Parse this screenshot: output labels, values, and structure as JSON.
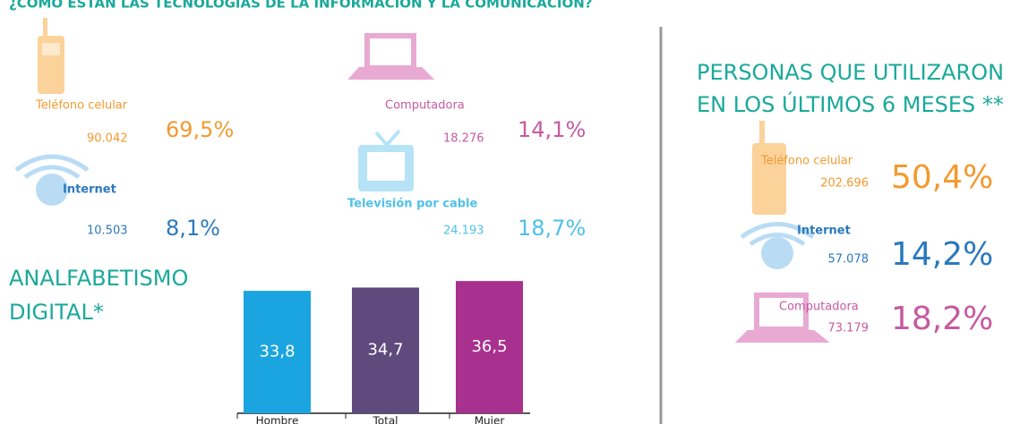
{
  "header": {
    "title": "¿CÓMO ESTÁN LAS TECNOLOGÍAS DE LA INFORMACIÓN Y LA COMUNICACIÓN?"
  },
  "hogares": [
    {
      "label": "Teléfono celular",
      "count": "90.042",
      "percent": "69,5%"
    },
    {
      "label": "Computadora",
      "count": "18.276",
      "percent": "14,1%"
    },
    {
      "label": "Internet",
      "count": "10.503",
      "percent": "8,1%"
    },
    {
      "label": "Televisión por cable",
      "count": "24.193",
      "percent": "18,7%"
    }
  ],
  "chart_data": {
    "type": "bar",
    "title": "ANALFABETISMO DIGITAL*",
    "categories": [
      "Hombre",
      "Total",
      "Mujer"
    ],
    "values": [
      33.8,
      34.7,
      36.5
    ],
    "value_labels": [
      "33,8",
      "34,7",
      "36,5"
    ],
    "colors": [
      "#1ba5e0",
      "#5e4a7c",
      "#a8308e"
    ],
    "ylim": [
      0,
      40
    ]
  },
  "personas": {
    "title": [
      "PERSONAS QUE UTILIZARON",
      "EN LOS ÚLTIMOS 6 MESES **"
    ],
    "items": [
      {
        "label": "Teléfono celular",
        "count": "202.696",
        "percent": "50,4%"
      },
      {
        "label": "Internet",
        "count": "57.078",
        "percent": "14,2%"
      },
      {
        "label": "Computadora",
        "count": "73.179",
        "percent": "18,2%"
      }
    ]
  }
}
